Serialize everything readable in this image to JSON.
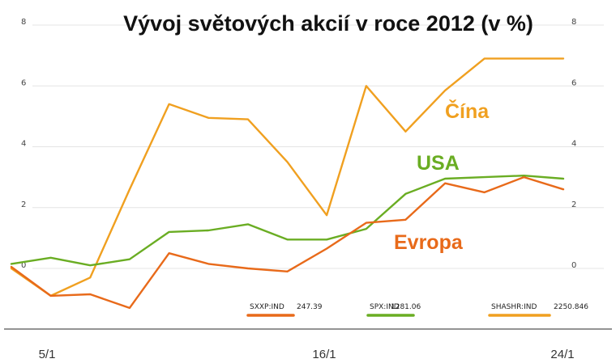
{
  "chart_data": {
    "type": "line",
    "title": "Vývoj světových akcií v roce 2012 (v %)",
    "xlabel": "",
    "ylabel": "",
    "ylim": [
      -1.5,
      8
    ],
    "yticks": [
      "8",
      "6",
      "4",
      "2",
      "0"
    ],
    "ytick_values": [
      8,
      6,
      4,
      2,
      0
    ],
    "x_tick_labels": [
      "5/1",
      "16/1",
      "24/1"
    ],
    "x_tick_index": [
      1,
      8,
      14
    ],
    "grid": true,
    "legend_position": "bottom-right",
    "series": [
      {
        "name": "Čína",
        "color": "#f0a020",
        "legend_ticker": "SHASHR:IND",
        "legend_value": "2250.846",
        "values": [
          0.0,
          -0.9,
          -0.3,
          2.6,
          5.4,
          4.95,
          4.9,
          3.5,
          1.75,
          6.0,
          4.5,
          5.85,
          6.9,
          6.9,
          6.9
        ]
      },
      {
        "name": "USA",
        "color": "#6aad23",
        "legend_ticker": "SPX:IND",
        "legend_value": "1281.06",
        "values": [
          0.15,
          0.35,
          0.1,
          0.3,
          1.2,
          1.25,
          1.45,
          0.95,
          0.95,
          1.3,
          2.45,
          2.95,
          3.0,
          3.05,
          2.95
        ]
      },
      {
        "name": "Evropa",
        "color": "#e86a1a",
        "legend_ticker": "SXXP:IND",
        "legend_value": "247.39",
        "values": [
          0.05,
          -0.9,
          -0.85,
          -1.3,
          0.5,
          0.15,
          0.0,
          -0.1,
          0.65,
          1.5,
          1.6,
          2.8,
          2.5,
          3.0,
          2.6
        ]
      }
    ]
  }
}
